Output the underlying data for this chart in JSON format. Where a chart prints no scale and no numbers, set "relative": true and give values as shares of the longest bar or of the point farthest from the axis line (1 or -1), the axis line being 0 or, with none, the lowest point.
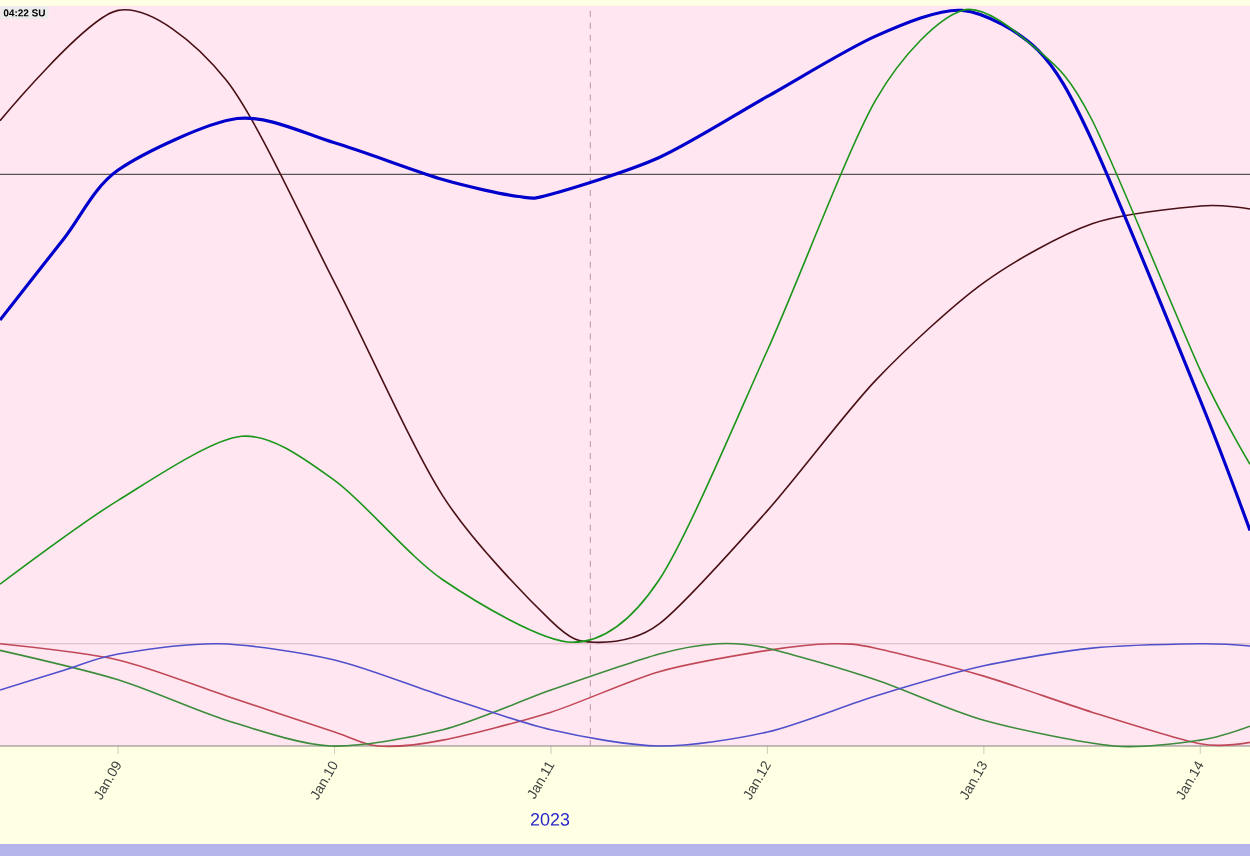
{
  "chart_data": {
    "type": "line",
    "relative": true,
    "xlabel": "2023",
    "annotations": [
      "04:22 SU"
    ],
    "xlim": [
      "2023-01-08T10:54",
      "2023-01-14T05:31"
    ],
    "xticks": [
      {
        "value": "2023-01-09",
        "label": "Jan.09"
      },
      {
        "value": "2023-01-10",
        "label": "Jan.10"
      },
      {
        "value": "2023-01-11",
        "label": "Jan.11"
      },
      {
        "value": "2023-01-12",
        "label": "Jan.12"
      },
      {
        "value": "2023-01-13",
        "label": "Jan.13"
      },
      {
        "value": "2023-01-14",
        "label": "Jan.14"
      }
    ],
    "grid": false,
    "marker": "none",
    "line_style": "solid",
    "ref_lines": [
      {
        "axis": "y",
        "value": 0.777,
        "color": "#555555",
        "line_style": "solid"
      },
      {
        "axis": "y",
        "value": 0.139,
        "color": "#d8b8c4",
        "line_style": "solid"
      },
      {
        "axis": "x",
        "value": "2023-01-11T04:22",
        "color": "#c8a0b0",
        "line_style": "dashed"
      }
    ],
    "series": [
      {
        "color": "#4a1018",
        "x": [
          "2023-01-08T10:54",
          "2023-01-09T00:00",
          "2023-01-09T12:00",
          "2023-01-10T00:00",
          "2023-01-10T12:00",
          "2023-01-11T00:00",
          "2023-01-11T04:48",
          "2023-01-11T12:00",
          "2023-01-12T00:00",
          "2023-01-12T12:00",
          "2023-01-13T00:00",
          "2023-01-13T12:00",
          "2023-01-14T00:00",
          "2023-01-14T05:31"
        ],
        "values": [
          0.85,
          1,
          0.905,
          0.63,
          0.34,
          0.17,
          0.141,
          0.166,
          0.32,
          0.497,
          0.63,
          0.71,
          0.734,
          0.73
        ]
      },
      {
        "color": "#0000cc",
        "x": [
          "2023-01-08T10:54",
          "2023-01-08T18:00",
          "2023-01-09T00:00",
          "2023-01-09T13:12",
          "2023-01-10T00:00",
          "2023-01-10T12:00",
          "2023-01-10T20:24",
          "2023-01-11T00:00",
          "2023-01-11T12:00",
          "2023-01-12T00:00",
          "2023-01-12T12:00",
          "2023-01-12T21:36",
          "2023-01-13T06:00",
          "2023-01-13T12:00",
          "2023-01-14T00:00",
          "2023-01-14T05:31"
        ],
        "values": [
          0.579,
          0.69,
          0.783,
          0.853,
          0.82,
          0.77,
          0.747,
          0.75,
          0.8,
          0.883,
          0.965,
          1,
          0.946,
          0.823,
          0.47,
          0.293
        ]
      },
      {
        "color": "#1a961a",
        "x": [
          "2023-01-08T10:54",
          "2023-01-09T00:00",
          "2023-01-09T13:41",
          "2023-01-10T00:00",
          "2023-01-10T12:00",
          "2023-01-11T02:24",
          "2023-01-11T12:00",
          "2023-01-12T00:00",
          "2023-01-12T12:00",
          "2023-01-12T21:36",
          "2023-01-13T06:00",
          "2023-01-13T12:00",
          "2023-01-14T00:00",
          "2023-01-14T05:31"
        ],
        "values": [
          0.22,
          0.334,
          0.421,
          0.361,
          0.226,
          0.141,
          0.226,
          0.538,
          0.878,
          1,
          0.946,
          0.851,
          0.511,
          0.383
        ]
      },
      {
        "color": "#c04858",
        "x": [
          "2023-01-08T10:54",
          "2023-01-09T00:00",
          "2023-01-09T12:00",
          "2023-01-10T00:00",
          "2023-01-10T04:48",
          "2023-01-10T12:00",
          "2023-01-11T00:00",
          "2023-01-11T12:00",
          "2023-01-12T00:00",
          "2023-01-12T07:12",
          "2023-01-12T12:00",
          "2023-01-13T00:00",
          "2023-01-13T12:00",
          "2023-01-14T00:00",
          "2023-01-14T05:31"
        ],
        "values": [
          0.139,
          0.117,
          0.068,
          0.019,
          0,
          0.008,
          0.046,
          0.101,
          0.13,
          0.139,
          0.133,
          0.095,
          0.046,
          0.003,
          0.005
        ]
      },
      {
        "color": "#3c8c3c",
        "x": [
          "2023-01-08T10:54",
          "2023-01-09T00:00",
          "2023-01-09T12:00",
          "2023-01-09T23:31",
          "2023-01-10T12:00",
          "2023-01-11T00:00",
          "2023-01-11T12:00",
          "2023-01-11T18:29",
          "2023-01-12T00:00",
          "2023-01-12T12:00",
          "2023-01-13T00:00",
          "2023-01-13T14:24",
          "2023-01-14T00:00",
          "2023-01-14T05:31"
        ],
        "values": [
          0.13,
          0.09,
          0.035,
          0,
          0.022,
          0.076,
          0.125,
          0.139,
          0.133,
          0.09,
          0.035,
          0,
          0.008,
          0.027
        ]
      },
      {
        "color": "#5050cc",
        "x": [
          "2023-01-08T10:54",
          "2023-01-08T18:00",
          "2023-01-09T00:00",
          "2023-01-09T11:17",
          "2023-01-10T00:00",
          "2023-01-10T12:00",
          "2023-01-11T00:00",
          "2023-01-11T12:00",
          "2023-01-12T00:00",
          "2023-01-12T12:00",
          "2023-01-13T00:00",
          "2023-01-13T12:00",
          "2023-01-14T00:00",
          "2023-01-14T05:31"
        ],
        "values": [
          0.076,
          0.103,
          0.125,
          0.139,
          0.117,
          0.068,
          0.022,
          0,
          0.019,
          0.068,
          0.109,
          0.133,
          0.139,
          0.136
        ]
      }
    ]
  }
}
